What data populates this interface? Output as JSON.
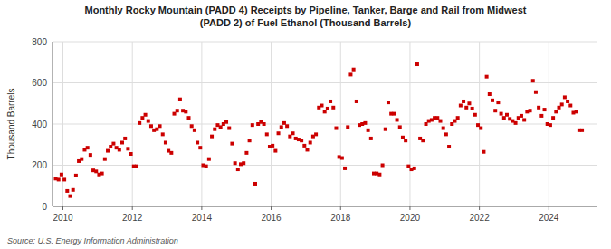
{
  "chart_data": {
    "type": "scatter",
    "title": "Monthly Rocky Mountain (PADD 4) Receipts by Pipeline, Tanker, Barge and Rail from Midwest\n(PADD 2) of Fuel Ethanol (Thousand Barrels)",
    "y_label": "Thousand Barrels",
    "source": "Source: U.S. Energy Information Administration",
    "color": "#cc0000",
    "marker": "square",
    "grid": true,
    "xlim": [
      2009.7,
      2025.4
    ],
    "xticks": [
      2010,
      2012,
      2014,
      2016,
      2018,
      2020,
      2022,
      2024
    ],
    "ylim": [
      0,
      800
    ],
    "yticks": [
      0,
      200,
      400,
      600,
      800
    ],
    "x": [
      2009.7916666667,
      2009.875,
      2009.9583333333,
      2010.0416666667,
      2010.125,
      2010.2083333333,
      2010.2916666667,
      2010.375,
      2010.4583333333,
      2010.5416666667,
      2010.625,
      2010.7083333333,
      2010.7916666667,
      2010.875,
      2010.9583333333,
      2011.0416666667,
      2011.125,
      2011.2083333333,
      2011.2916666667,
      2011.375,
      2011.4583333333,
      2011.5416666667,
      2011.625,
      2011.7083333333,
      2011.7916666667,
      2011.875,
      2011.9583333333,
      2012.0416666667,
      2012.125,
      2012.2083333333,
      2012.2916666667,
      2012.375,
      2012.4583333333,
      2012.5416666667,
      2012.625,
      2012.7083333333,
      2012.7916666667,
      2012.875,
      2012.9583333333,
      2013.0416666667,
      2013.125,
      2013.2083333333,
      2013.2916666667,
      2013.375,
      2013.4583333333,
      2013.5416666667,
      2013.625,
      2013.7083333333,
      2013.7916666667,
      2013.875,
      2013.9583333333,
      2014.0416666667,
      2014.125,
      2014.2083333333,
      2014.2916666667,
      2014.375,
      2014.4583333333,
      2014.5416666667,
      2014.625,
      2014.7083333333,
      2014.7916666667,
      2014.875,
      2014.9583333333,
      2015.0416666667,
      2015.125,
      2015.2083333333,
      2015.2916666667,
      2015.375,
      2015.4583333333,
      2015.5416666667,
      2015.625,
      2015.7083333333,
      2015.7916666667,
      2015.875,
      2015.9583333333,
      2016.0416666667,
      2016.125,
      2016.2083333333,
      2016.2916666667,
      2016.375,
      2016.4583333333,
      2016.5416666667,
      2016.625,
      2016.7083333333,
      2016.7916666667,
      2016.875,
      2016.9583333333,
      2017.0416666667,
      2017.125,
      2017.2083333333,
      2017.2916666667,
      2017.375,
      2017.4583333333,
      2017.5416666667,
      2017.625,
      2017.7083333333,
      2017.7916666667,
      2017.875,
      2017.9583333333,
      2018.0416666667,
      2018.125,
      2018.2083333333,
      2018.2916666667,
      2018.375,
      2018.4583333333,
      2018.5416666667,
      2018.625,
      2018.7083333333,
      2018.7916666667,
      2018.875,
      2018.9583333333,
      2019.0416666667,
      2019.125,
      2019.2083333333,
      2019.2916666667,
      2019.375,
      2019.4583333333,
      2019.5416666667,
      2019.625,
      2019.7083333333,
      2019.7916666667,
      2019.875,
      2019.9583333333,
      2020.0416666667,
      2020.125,
      2020.2083333333,
      2020.2916666667,
      2020.375,
      2020.4583333333,
      2020.5416666667,
      2020.625,
      2020.7083333333,
      2020.7916666667,
      2020.875,
      2020.9583333333,
      2021.0416666667,
      2021.125,
      2021.2083333333,
      2021.2916666667,
      2021.375,
      2021.4583333333,
      2021.5416666667,
      2021.625,
      2021.7083333333,
      2021.7916666667,
      2021.875,
      2021.9583333333,
      2022.0416666667,
      2022.125,
      2022.2083333333,
      2022.2916666667,
      2022.375,
      2022.4583333333,
      2022.5416666667,
      2022.625,
      2022.7083333333,
      2022.7916666667,
      2022.875,
      2022.9583333333,
      2023.0416666667,
      2023.125,
      2023.2083333333,
      2023.2916666667,
      2023.375,
      2023.4583333333,
      2023.5416666667,
      2023.625,
      2023.7083333333,
      2023.7916666667,
      2023.875,
      2023.9583333333,
      2024.0416666667,
      2024.125,
      2024.2083333333,
      2024.2916666667,
      2024.375,
      2024.4583333333,
      2024.5416666667,
      2024.625,
      2024.7083333333,
      2024.7916666667,
      2024.875,
      2024.9583333333
    ],
    "values": [
      135,
      130,
      155,
      130,
      75,
      50,
      80,
      150,
      220,
      230,
      275,
      285,
      250,
      175,
      170,
      155,
      160,
      230,
      270,
      290,
      305,
      285,
      275,
      310,
      330,
      280,
      255,
      195,
      195,
      405,
      430,
      445,
      415,
      390,
      370,
      375,
      390,
      350,
      310,
      270,
      260,
      450,
      465,
      520,
      465,
      460,
      430,
      390,
      370,
      310,
      285,
      200,
      195,
      230,
      340,
      375,
      395,
      385,
      400,
      410,
      380,
      305,
      210,
      180,
      205,
      210,
      260,
      320,
      395,
      110,
      400,
      410,
      400,
      350,
      290,
      295,
      270,
      355,
      385,
      405,
      390,
      340,
      355,
      330,
      325,
      320,
      295,
      275,
      310,
      340,
      350,
      480,
      490,
      460,
      475,
      510,
      480,
      380,
      240,
      235,
      185,
      385,
      640,
      665,
      510,
      395,
      400,
      405,
      370,
      330,
      160,
      160,
      155,
      200,
      375,
      505,
      450,
      450,
      420,
      385,
      335,
      320,
      195,
      180,
      185,
      690,
      330,
      320,
      400,
      415,
      420,
      430,
      430,
      415,
      380,
      350,
      290,
      400,
      415,
      430,
      490,
      510,
      480,
      500,
      475,
      445,
      395,
      380,
      265,
      630,
      545,
      515,
      465,
      505,
      450,
      430,
      445,
      425,
      415,
      405,
      430,
      440,
      420,
      460,
      465,
      610,
      555,
      480,
      440,
      470,
      400,
      395,
      430,
      460,
      480,
      495,
      530,
      510,
      490,
      455,
      460,
      370,
      370
    ]
  }
}
